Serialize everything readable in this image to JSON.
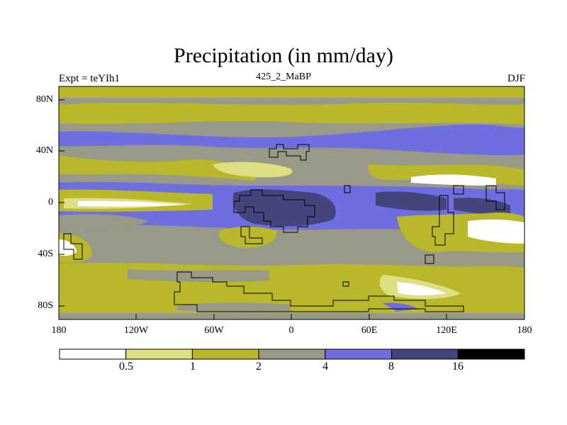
{
  "chart_data": {
    "type": "contour-map",
    "title": "Precipitation (in mm/day)",
    "left_string": "Expt = teYIh1",
    "center_string": "425_2_MaBP",
    "right_string": "DJF",
    "x_ticks": [
      "180",
      "120W",
      "60W",
      "0",
      "60E",
      "120E",
      "180"
    ],
    "x_tick_values": [
      -180,
      -120,
      -60,
      0,
      60,
      120,
      180
    ],
    "y_ticks": [
      "80N",
      "40N",
      "0",
      "40S",
      "80S"
    ],
    "y_tick_values": [
      80,
      40,
      0,
      -40,
      -80
    ],
    "xlim": [
      -180,
      180
    ],
    "ylim": [
      -90,
      90
    ],
    "contour_levels": [
      "0.5",
      "1",
      "2",
      "4",
      "8",
      "16"
    ],
    "level_values": [
      0.5,
      1,
      2,
      4,
      8,
      16
    ],
    "level_colors": [
      "#ffffff",
      "#dede82",
      "#b8b82a",
      "#999987",
      "#6e6ee0",
      "#45457e",
      "#000000"
    ]
  }
}
